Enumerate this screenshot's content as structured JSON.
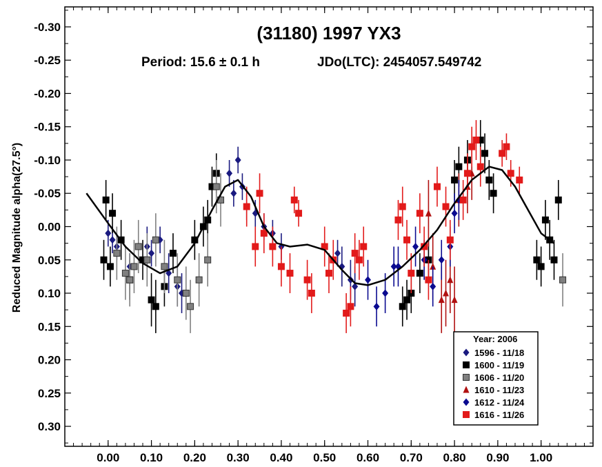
{
  "chart_data": {
    "type": "scatter",
    "title": "(31180) 1997 YX3",
    "subtitle_period": "Period: 15.6 ± 0.1 h",
    "subtitle_epoch": "JDo(LTC): 2454057.549742",
    "xlabel": "",
    "ylabel": "Reduced Magnitude alpha(27.5°)",
    "xlim": [
      -0.1,
      1.12
    ],
    "ylim": [
      -0.33,
      0.33
    ],
    "y_inverted": true,
    "x_ticks": [
      "0.00",
      "0.10",
      "0.20",
      "0.30",
      "0.40",
      "0.50",
      "0.60",
      "0.70",
      "0.80",
      "0.90",
      "1.00"
    ],
    "x_tick_values": [
      0,
      0.1,
      0.2,
      0.3,
      0.4,
      0.5,
      0.6,
      0.7,
      0.8,
      0.9,
      1.0
    ],
    "y_ticks": [
      "-0.30",
      "-0.25",
      "-0.20",
      "-0.15",
      "-0.10",
      "-0.05",
      "0.00",
      "0.05",
      "0.10",
      "0.15",
      "0.20",
      "0.25",
      "0.30"
    ],
    "y_tick_values": [
      -0.3,
      -0.25,
      -0.2,
      -0.15,
      -0.1,
      -0.05,
      0,
      0.05,
      0.1,
      0.15,
      0.2,
      0.25,
      0.3
    ],
    "legend": {
      "title": "Year: 2006",
      "placement": "bottom-right"
    },
    "fit_curve": {
      "x": [
        -0.05,
        0.0,
        0.04,
        0.08,
        0.12,
        0.16,
        0.2,
        0.24,
        0.27,
        0.3,
        0.33,
        0.36,
        0.39,
        0.42,
        0.46,
        0.5,
        0.54,
        0.57,
        0.6,
        0.64,
        0.68,
        0.72,
        0.76,
        0.8,
        0.84,
        0.88,
        0.91,
        0.94,
        0.97,
        1.0,
        1.03
      ],
      "y": [
        -0.05,
        -0.005,
        0.03,
        0.055,
        0.07,
        0.06,
        0.025,
        -0.025,
        -0.06,
        -0.07,
        -0.045,
        0.0,
        0.025,
        0.03,
        0.027,
        0.035,
        0.065,
        0.085,
        0.088,
        0.08,
        0.06,
        0.035,
        0.005,
        -0.035,
        -0.07,
        -0.09,
        -0.085,
        -0.06,
        -0.025,
        0.01,
        0.025
      ]
    },
    "series": [
      {
        "name": "1596 - 11/18",
        "marker": "diamond",
        "color": "#1a1a80",
        "x": [
          0.0,
          0.01,
          0.02,
          0.05,
          0.09,
          0.1,
          0.12,
          0.14,
          0.16,
          0.17,
          0.28,
          0.29,
          0.3,
          0.31,
          0.32,
          0.34,
          0.36,
          0.38,
          0.4,
          0.53,
          0.54,
          0.56,
          0.57
        ],
        "y": [
          0.01,
          0.02,
          0.03,
          0.06,
          0.03,
          0.04,
          0.02,
          0.07,
          0.09,
          0.1,
          -0.08,
          -0.05,
          -0.1,
          -0.06,
          -0.03,
          -0.02,
          0.0,
          0.01,
          0.03,
          0.04,
          0.06,
          0.08,
          0.09
        ],
        "err": [
          0.02,
          0.02,
          0.02,
          0.02,
          0.03,
          0.02,
          0.02,
          0.03,
          0.03,
          0.03,
          0.02,
          0.02,
          0.02,
          0.02,
          0.02,
          0.02,
          0.02,
          0.02,
          0.02,
          0.02,
          0.03,
          0.03,
          0.03
        ]
      },
      {
        "name": "1600 - 11/19",
        "marker": "square",
        "color": "#000000",
        "x": [
          -0.01,
          -0.005,
          0.005,
          0.01,
          0.03,
          0.05,
          0.08,
          0.1,
          0.11,
          0.13,
          0.15,
          0.2,
          0.22,
          0.23,
          0.24,
          0.25,
          0.68,
          0.69,
          0.7,
          0.72,
          0.74,
          0.8,
          0.81,
          0.83,
          0.86,
          0.87,
          0.88,
          0.89,
          0.99,
          1.0,
          1.01,
          1.02,
          1.03,
          1.04
        ],
        "y": [
          0.05,
          -0.04,
          0.06,
          -0.02,
          0.02,
          0.08,
          0.05,
          0.11,
          0.12,
          0.09,
          0.04,
          0.02,
          0.0,
          -0.01,
          -0.06,
          -0.08,
          0.12,
          0.11,
          0.1,
          0.07,
          0.05,
          -0.07,
          -0.09,
          -0.1,
          -0.13,
          -0.11,
          -0.07,
          -0.05,
          0.05,
          0.06,
          -0.01,
          0.02,
          0.05,
          -0.04
        ],
        "err": [
          0.03,
          0.03,
          0.03,
          0.03,
          0.03,
          0.03,
          0.03,
          0.04,
          0.04,
          0.03,
          0.03,
          0.03,
          0.03,
          0.03,
          0.03,
          0.03,
          0.03,
          0.03,
          0.03,
          0.03,
          0.03,
          0.03,
          0.03,
          0.03,
          0.03,
          0.03,
          0.03,
          0.03,
          0.03,
          0.03,
          0.03,
          0.03,
          0.03,
          0.03
        ]
      },
      {
        "name": "1606 - 11/20",
        "marker": "square",
        "color": "#808080",
        "x": [
          0.02,
          0.04,
          0.05,
          0.06,
          0.07,
          0.09,
          0.11,
          0.13,
          0.16,
          0.18,
          0.19,
          0.21,
          0.23,
          0.25,
          0.26,
          1.05
        ],
        "y": [
          0.04,
          0.07,
          0.08,
          0.06,
          0.03,
          0.05,
          0.02,
          0.06,
          0.08,
          0.1,
          0.12,
          0.08,
          0.05,
          -0.06,
          -0.04,
          0.08
        ],
        "err": [
          0.04,
          0.04,
          0.04,
          0.04,
          0.04,
          0.04,
          0.04,
          0.04,
          0.04,
          0.04,
          0.04,
          0.04,
          0.04,
          0.04,
          0.04,
          0.04
        ]
      },
      {
        "name": "1610 - 11/23",
        "marker": "triangle",
        "color": "#b01010",
        "x": [
          0.74,
          0.75,
          0.77,
          0.78,
          0.79,
          0.8,
          0.81,
          0.83,
          0.84
        ],
        "y": [
          -0.02,
          0.06,
          0.11,
          0.1,
          0.08,
          0.11,
          -0.04,
          -0.06,
          -0.08
        ],
        "err": [
          0.05,
          0.05,
          0.05,
          0.05,
          0.05,
          0.05,
          0.04,
          0.04,
          0.04
        ]
      },
      {
        "name": "1612 - 11/24",
        "marker": "diamond",
        "color": "#0a0a90",
        "x": [
          0.6,
          0.62,
          0.64,
          0.66,
          0.67,
          0.71,
          0.73,
          0.75,
          0.77,
          0.79,
          0.8,
          0.81
        ],
        "y": [
          0.08,
          0.12,
          0.1,
          0.06,
          0.06,
          0.03,
          0.05,
          0.09,
          0.05,
          0.03,
          -0.02,
          -0.04
        ],
        "err": [
          0.03,
          0.03,
          0.03,
          0.03,
          0.03,
          0.03,
          0.03,
          0.03,
          0.03,
          0.03,
          0.03,
          0.03
        ]
      },
      {
        "name": "1616 - 11/26",
        "marker": "square",
        "color": "#e21a1a",
        "x": [
          0.32,
          0.34,
          0.35,
          0.36,
          0.38,
          0.4,
          0.42,
          0.43,
          0.44,
          0.46,
          0.47,
          0.5,
          0.51,
          0.52,
          0.55,
          0.56,
          0.57,
          0.58,
          0.59,
          0.67,
          0.68,
          0.69,
          0.7,
          0.72,
          0.73,
          0.74,
          0.76,
          0.78,
          0.79,
          0.82,
          0.83,
          0.84,
          0.85,
          0.86,
          0.91,
          0.92,
          0.93,
          0.95
        ],
        "y": [
          -0.03,
          0.03,
          -0.05,
          0.01,
          0.03,
          0.06,
          0.07,
          -0.04,
          -0.02,
          0.08,
          0.1,
          0.03,
          0.07,
          0.05,
          0.13,
          0.12,
          0.04,
          0.05,
          0.03,
          -0.01,
          -0.03,
          0.02,
          0.07,
          -0.02,
          0.03,
          0.08,
          -0.06,
          -0.03,
          0.02,
          -0.04,
          -0.08,
          -0.12,
          -0.13,
          -0.09,
          -0.11,
          -0.12,
          -0.08,
          -0.07
        ],
        "err": [
          0.03,
          0.03,
          0.03,
          0.03,
          0.03,
          0.03,
          0.03,
          0.02,
          0.02,
          0.03,
          0.03,
          0.03,
          0.03,
          0.03,
          0.03,
          0.03,
          0.03,
          0.03,
          0.03,
          0.03,
          0.03,
          0.03,
          0.03,
          0.03,
          0.03,
          0.03,
          0.03,
          0.03,
          0.03,
          0.03,
          0.03,
          0.03,
          0.03,
          0.03,
          0.02,
          0.02,
          0.02,
          0.02
        ]
      }
    ]
  }
}
